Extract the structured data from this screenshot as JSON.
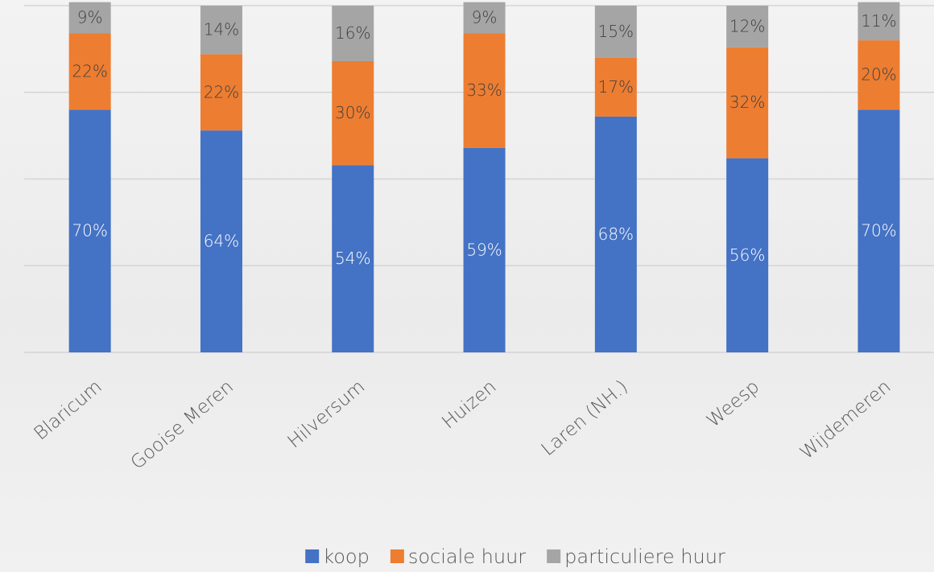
{
  "chart_data": {
    "type": "stacked_bar",
    "categories": [
      "Blaricum",
      "Gooise Meren",
      "Hilversum",
      "Huizen",
      "Laren (NH.)",
      "Weesp",
      "Wijdemeren"
    ],
    "series": [
      {
        "name": "koop",
        "color": "#4472c4",
        "values": [
          70,
          64,
          54,
          59,
          68,
          56,
          70
        ],
        "value_labels": [
          "70%",
          "64%",
          "54%",
          "59%",
          "68%",
          "56%",
          "70%"
        ]
      },
      {
        "name": "sociale huur",
        "color": "#ed7d31",
        "values": [
          22,
          22,
          30,
          33,
          17,
          32,
          20
        ],
        "value_labels": [
          "22%",
          "22%",
          "30%",
          "33%",
          "17%",
          "32%",
          "20%"
        ]
      },
      {
        "name": "particuliere huur",
        "color": "#a5a5a5",
        "values": [
          9,
          14,
          16,
          9,
          15,
          12,
          11
        ],
        "value_labels": [
          "9%",
          "14%",
          "16%",
          "9%",
          "15%",
          "12%",
          "11%"
        ]
      }
    ],
    "ylim": [
      0,
      100
    ],
    "yticks": [
      0,
      25,
      50,
      75,
      100
    ],
    "grid": true,
    "legend": "bottom"
  }
}
